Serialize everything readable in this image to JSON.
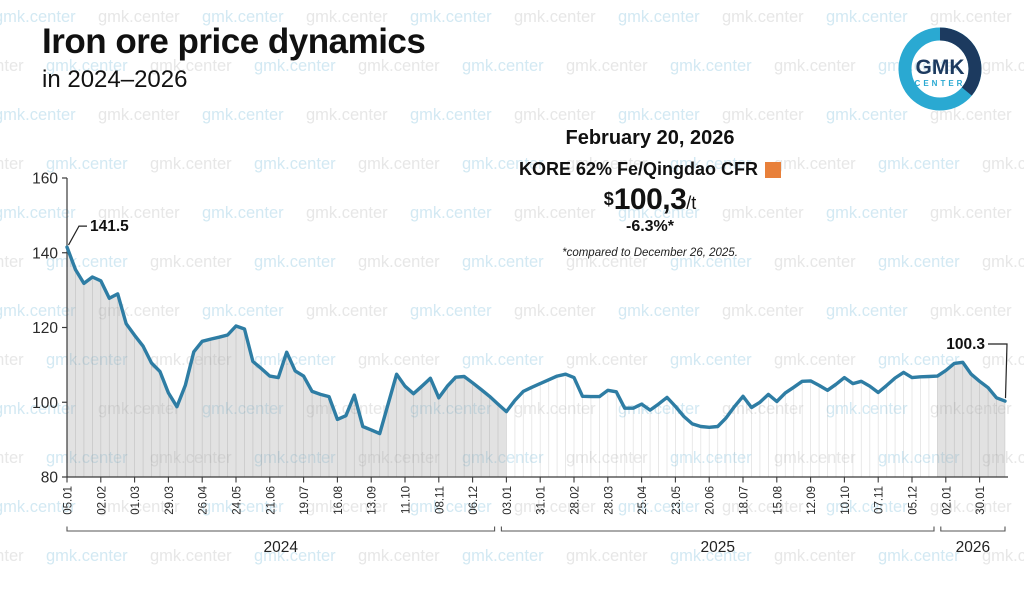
{
  "header": {
    "title": "Iron ore price dynamics",
    "subtitle": "in 2024–2026"
  },
  "logo": {
    "line1": "GMK",
    "line2": "CENTER",
    "ring_color": "#2aa9d2",
    "ring_dark": "#1c3a5f",
    "text_dark": "#1c3a5f",
    "text_light": "#2aa9d2"
  },
  "watermark": {
    "text": "gmk.center",
    "color_a": "#d3e9f3",
    "color_b": "#e7e7e7"
  },
  "callout": {
    "date": "February 20, 2026",
    "index_label": "KORE 62% Fe/Qingdao CFR",
    "marker_color": "#e8803a",
    "currency": "$",
    "price": "100,3",
    "unit": "/t",
    "change": "-6.3%*",
    "footnote": "*compared to December 26, 2025."
  },
  "chart_data": {
    "type": "area",
    "title": "Iron ore price dynamics in 2024-2026",
    "xlabel": "",
    "ylabel": "",
    "ylim": [
      80,
      160
    ],
    "yticks": [
      80,
      100,
      120,
      140,
      160
    ],
    "grid": false,
    "line_color": "#2e7da4",
    "tick_every": 4,
    "first_point_label": "141.5",
    "last_point_label": "100.3",
    "x": [
      "05.01",
      "12.01",
      "19.01",
      "26.01",
      "02.02",
      "09.02",
      "16.02",
      "23.02",
      "01.03",
      "08.03",
      "15.03",
      "22.03",
      "29.03",
      "05.04",
      "12.04",
      "19.04",
      "26.04",
      "03.05",
      "10.05",
      "17.05",
      "24.05",
      "31.05",
      "07.06",
      "14.06",
      "21.06",
      "28.06",
      "05.07",
      "12.07",
      "19.07",
      "26.07",
      "02.08",
      "09.08",
      "16.08",
      "23.08",
      "30.08",
      "06.09",
      "13.09",
      "20.09",
      "27.09",
      "04.10",
      "11.10",
      "18.10",
      "25.10",
      "01.11",
      "08.11",
      "15.11",
      "22.11",
      "29.11",
      "06.12",
      "13.12",
      "20.12",
      "27.12",
      "03.01",
      "10.01",
      "17.01",
      "24.01",
      "31.01",
      "07.02",
      "14.02",
      "21.02",
      "28.02",
      "07.03",
      "14.03",
      "21.03",
      "28.03",
      "04.04",
      "11.04",
      "18.04",
      "25.04",
      "02.05",
      "09.05",
      "16.05",
      "23.05",
      "30.05",
      "06.06",
      "13.06",
      "20.06",
      "27.06",
      "04.07",
      "11.07",
      "18.07",
      "25.07",
      "01.08",
      "08.08",
      "15.08",
      "22.08",
      "29.08",
      "05.09",
      "12.09",
      "19.09",
      "26.09",
      "03.10",
      "10.10",
      "17.10",
      "24.10",
      "31.10",
      "07.11",
      "14.11",
      "21.11",
      "28.11",
      "05.12",
      "12.12",
      "19.12",
      "26.12",
      "02.01",
      "09.01",
      "16.01",
      "23.01",
      "30.01",
      "06.02",
      "13.02",
      "20.02"
    ],
    "values": [
      141.5,
      135.5,
      131.8,
      133.5,
      132.5,
      127.8,
      129.0,
      121.0,
      117.9,
      115.0,
      110.5,
      108.2,
      102.5,
      98.8,
      104.5,
      113.5,
      116.3,
      116.9,
      117.4,
      118.0,
      120.4,
      119.6,
      110.9,
      109.0,
      107.0,
      106.6,
      113.4,
      108.4,
      107.0,
      102.9,
      102.1,
      101.5,
      95.4,
      96.4,
      101.9,
      93.5,
      92.6,
      91.6,
      99.5,
      107.5,
      104.3,
      102.3,
      104.3,
      106.4,
      101.2,
      104.3,
      106.7,
      106.9,
      105.2,
      103.4,
      101.6,
      99.5,
      97.5,
      100.5,
      102.9,
      104.0,
      105.0,
      106.0,
      107.0,
      107.5,
      106.6,
      101.6,
      101.5,
      101.5,
      103.2,
      102.8,
      98.4,
      98.4,
      99.5,
      97.9,
      99.5,
      101.3,
      98.9,
      96.2,
      94.2,
      93.5,
      93.3,
      93.5,
      95.8,
      98.9,
      101.6,
      98.6,
      100.0,
      102.1,
      100.2,
      102.5,
      104.0,
      105.6,
      105.7,
      104.5,
      103.2,
      104.8,
      106.6,
      105.0,
      105.6,
      104.3,
      102.6,
      104.5,
      106.5,
      108.0,
      106.6,
      106.8,
      106.9,
      107.0,
      108.5,
      110.4,
      110.7,
      107.5,
      105.6,
      103.9,
      101.2,
      100.3
    ],
    "shaded_segments": [
      [
        0,
        52
      ],
      [
        103,
        111
      ]
    ],
    "years": [
      {
        "label": "2024",
        "from": 0,
        "to": 50.6
      },
      {
        "label": "2025",
        "from": 51.4,
        "to": 102.6
      },
      {
        "label": "2026",
        "from": 103.4,
        "to": 111
      }
    ]
  }
}
